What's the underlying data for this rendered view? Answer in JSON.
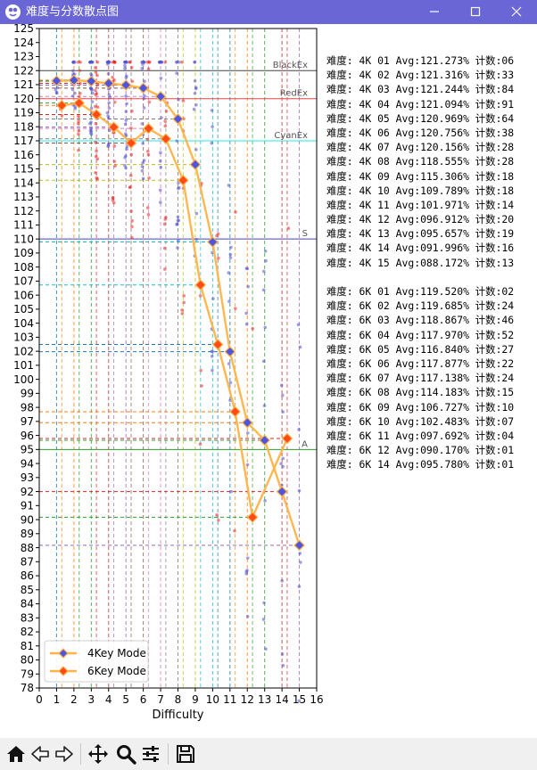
{
  "window": {
    "title": "难度与分数散点图",
    "titlebar_color": "#6b66d6",
    "icons": [
      "app-icon",
      "minimize-icon",
      "maximize-icon",
      "close-icon"
    ]
  },
  "chart_data": {
    "type": "scatter",
    "xlabel": "Difficulty",
    "ylabel": "",
    "xlim": [
      0,
      16
    ],
    "ylim": [
      78,
      125
    ],
    "xticks": [
      0,
      1,
      2,
      3,
      4,
      5,
      6,
      7,
      8,
      9,
      10,
      11,
      12,
      13,
      14,
      15,
      16
    ],
    "yticks_step": 1,
    "grid": false,
    "legend_position": "lower-left",
    "series": [
      {
        "name": "4Key Mode",
        "color": "#ffb347",
        "marker_color": "#4f55e0",
        "x": [
          1,
          2,
          3,
          4,
          5,
          6,
          7,
          8,
          9,
          10,
          11,
          12,
          13,
          14,
          15
        ],
        "values": [
          121.273,
          121.316,
          121.244,
          121.094,
          120.969,
          120.756,
          120.156,
          118.555,
          115.306,
          109.789,
          101.971,
          96.912,
          95.657,
          91.996,
          88.172
        ]
      },
      {
        "name": "6Key Mode",
        "color": "#ffb347",
        "marker_color": "#ff4a1a",
        "x": [
          1.3,
          2.3,
          3.3,
          4.3,
          5.3,
          6.3,
          7.3,
          8.3,
          9.3,
          10.3,
          11.3,
          12.3,
          14.3
        ],
        "values": [
          119.52,
          119.685,
          118.867,
          117.97,
          116.84,
          117.877,
          117.138,
          114.183,
          106.727,
          102.483,
          97.692,
          90.17,
          95.78
        ]
      }
    ],
    "threshold_lines": [
      {
        "label": "BlackEx",
        "y": 122,
        "color": "#444444"
      },
      {
        "label": "RedEx",
        "y": 120,
        "color": "#ee4444"
      },
      {
        "label": "CyanEx",
        "y": 117,
        "color": "#22e8e8"
      },
      {
        "label": "S",
        "y": 110,
        "color": "#4040cc"
      },
      {
        "label": "A",
        "y": 95,
        "color": "#2ca02c"
      }
    ],
    "category_colors": [
      "#1f77b4",
      "#ff7f0e",
      "#2ca02c",
      "#d62728",
      "#9467bd",
      "#8c564b",
      "#e377c2",
      "#7f7f7f",
      "#bcbd22",
      "#17becf"
    ]
  },
  "stats": {
    "fourkey": [
      "难度: 4K 01 Avg:121.273% 计数:06",
      "难度: 4K 02 Avg:121.316% 计数:33",
      "难度: 4K 03 Avg:121.244% 计数:84",
      "难度: 4K 04 Avg:121.094% 计数:91",
      "难度: 4K 05 Avg:120.969% 计数:64",
      "难度: 4K 06 Avg:120.756% 计数:38",
      "难度: 4K 07 Avg:120.156% 计数:28",
      "难度: 4K 08 Avg:118.555% 计数:28",
      "难度: 4K 09 Avg:115.306% 计数:18",
      "难度: 4K 10 Avg:109.789% 计数:18",
      "难度: 4K 11 Avg:101.971% 计数:14",
      "难度: 4K 12 Avg:096.912% 计数:20",
      "难度: 4K 13 Avg:095.657% 计数:19",
      "难度: 4K 14 Avg:091.996% 计数:16",
      "难度: 4K 15 Avg:088.172% 计数:13"
    ],
    "sixkey": [
      "难度: 6K 01 Avg:119.520% 计数:02",
      "难度: 6K 02 Avg:119.685% 计数:24",
      "难度: 6K 03 Avg:118.867% 计数:46",
      "难度: 6K 04 Avg:117.970% 计数:52",
      "难度: 6K 05 Avg:116.840% 计数:27",
      "难度: 6K 06 Avg:117.877% 计数:22",
      "难度: 6K 07 Avg:117.138% 计数:24",
      "难度: 6K 08 Avg:114.183% 计数:15",
      "难度: 6K 09 Avg:106.727% 计数:10",
      "难度: 6K 10 Avg:102.483% 计数:07",
      "难度: 6K 11 Avg:097.692% 计数:04",
      "难度: 6K 12 Avg:090.170% 计数:01",
      "难度: 6K 14 Avg:095.780% 计数:01"
    ]
  },
  "toolbar": {
    "icons": [
      "home-icon",
      "back-icon",
      "forward-icon",
      "pan-icon",
      "zoom-icon",
      "configure-icon",
      "save-icon"
    ]
  }
}
